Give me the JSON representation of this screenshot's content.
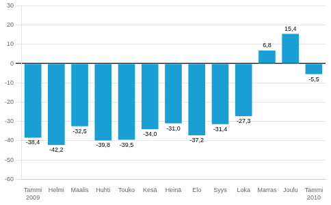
{
  "chart_data": {
    "type": "bar",
    "categories": [
      "Tammi\n2009",
      "Helmi",
      "Maalis",
      "Huhti",
      "Touko",
      "Kesä",
      "Heinä",
      "Elo",
      "Syys",
      "Loka",
      "Marras",
      "Joulu",
      "Tammi\n2010"
    ],
    "values": [
      -38.4,
      -42.2,
      -32.5,
      -39.8,
      -39.5,
      -34.0,
      -31.0,
      -37.2,
      -31.4,
      -27.3,
      6.8,
      15.4,
      -5.5
    ],
    "value_labels": [
      "-38,4",
      "-42,2",
      "-32,5",
      "-39,8",
      "-39,5",
      "-34,0",
      "-31,0",
      "-37,2",
      "-31,4",
      "-27,3",
      "6,8",
      "15,4",
      "-5,5"
    ],
    "data_labels": true,
    "color": "#1a9fd4",
    "ylim": [
      -60,
      30
    ],
    "yticks": [
      -60,
      -50,
      -40,
      -30,
      -20,
      -10,
      0,
      10,
      20,
      30
    ],
    "grid": true
  }
}
